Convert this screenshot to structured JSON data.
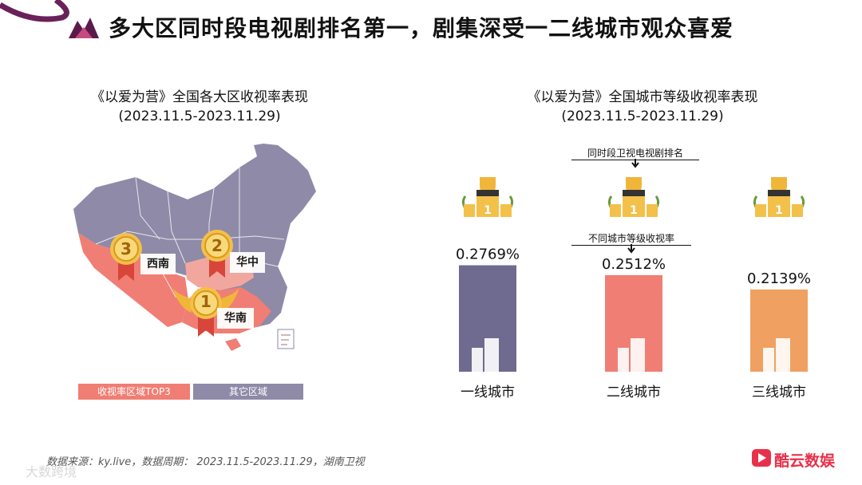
{
  "header": {
    "title": "多大区同时段电视剧排名第一，剧集深受一二线城市观众喜爱",
    "accent": "#5b1b4a"
  },
  "left_panel": {
    "title_line1": "《以爱为营》全国各大区收视率表现",
    "title_line2": "(2023.11.5-2023.11.29)",
    "regions": [
      {
        "rank": "3",
        "name": "西南"
      },
      {
        "rank": "2",
        "name": "华中"
      },
      {
        "rank": "1",
        "name": "华南"
      }
    ],
    "legend": [
      {
        "label": "收视率区域TOP3",
        "color": "#f07e74"
      },
      {
        "label": "其它区域",
        "color": "#8e8aa8"
      }
    ]
  },
  "right_panel": {
    "title_line1": "《以爱为营》全国城市等级收视率表现",
    "title_line2": "(2023.11.5-2023.11.29)",
    "note_rank": "同时段卫视电视剧排名",
    "note_rating": "不同城市等级收视率",
    "podium_rank": "1"
  },
  "chart_data": {
    "type": "bar",
    "title": "《以爱为营》全国城市等级收视率表现",
    "subtitle": "(2023.11.5-2023.11.29)",
    "categories": [
      "一线城市",
      "二线城市",
      "三线城市"
    ],
    "values": [
      0.2769,
      0.2512,
      0.2139
    ],
    "value_labels": [
      "0.2769%",
      "0.2512%",
      "0.2139%"
    ],
    "colors": [
      "#6f6a8f",
      "#f07e74",
      "#f0a060"
    ],
    "ranks": [
      "1",
      "1",
      "1"
    ],
    "unit": "%",
    "grid": false
  },
  "footer": {
    "source": "数据来源：ky.live，数据周期： 2023.11.5-2023.11.29，湖南卫视"
  },
  "brand": {
    "name": "酷云数娱",
    "color": "#e8304a"
  },
  "watermark": "大数跨境"
}
